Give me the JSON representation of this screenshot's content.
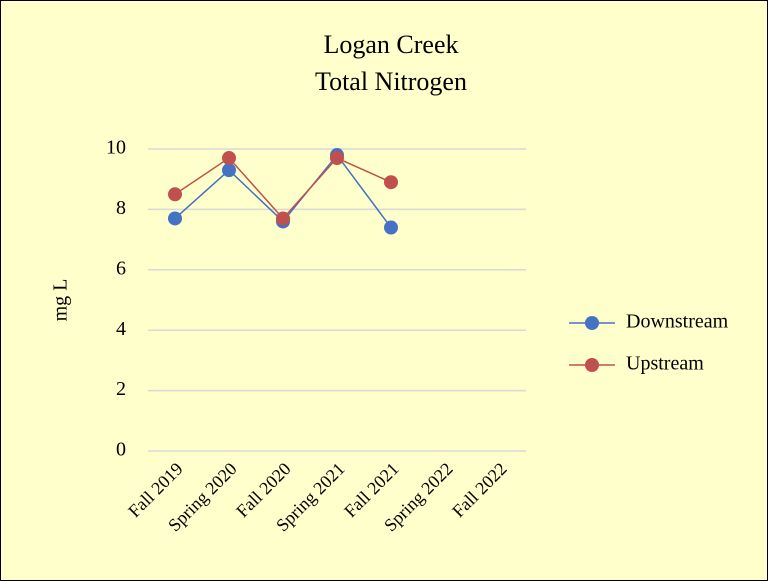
{
  "chart_data": {
    "type": "line",
    "title": [
      "Logan Creek",
      "Total Nitrogen"
    ],
    "y_label": "mg L",
    "categories": [
      "Fall 2019",
      "Spring 2020",
      "Fall 2020",
      "Spring 2021",
      "Fall 2021",
      "Spring 2022",
      "Fall 2022"
    ],
    "series": [
      {
        "name": "Downstream",
        "color": "#4472c4",
        "values": [
          7.7,
          9.3,
          7.6,
          9.8,
          7.4,
          null,
          null
        ]
      },
      {
        "name": "Upstream",
        "color": "#c0504d",
        "values": [
          8.5,
          9.7,
          7.7,
          9.7,
          8.9,
          null,
          null
        ]
      }
    ],
    "ylim": [
      0,
      10
    ],
    "yticks": [
      0,
      2,
      4,
      6,
      8,
      10
    ],
    "grid": true,
    "legend": "right"
  }
}
